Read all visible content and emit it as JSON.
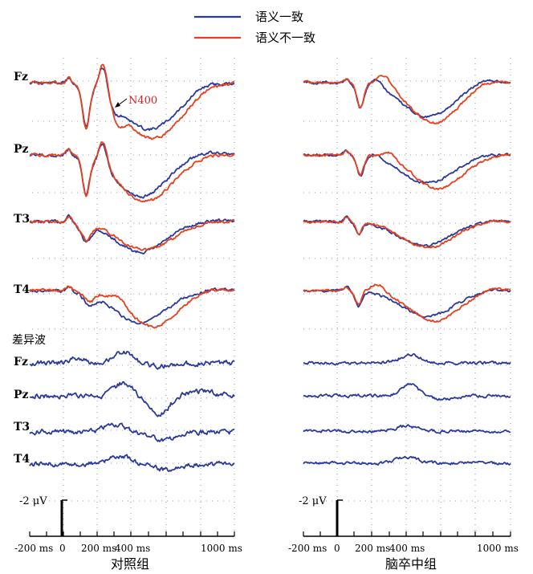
{
  "legend": [
    {
      "label": "语义一致",
      "color": "#2b3a9a"
    },
    {
      "label": "语义不一致",
      "color": "#e8401c"
    }
  ],
  "colors": {
    "consistent": "#2b3a9a",
    "inconsistent": "#e8401c",
    "grid": "#8aa0c4",
    "annotation": "#d02020"
  },
  "panels": [
    {
      "title": "对照组"
    },
    {
      "title": "脑卒中组"
    }
  ],
  "electrodes": [
    "Fz",
    "Pz",
    "T3",
    "T4"
  ],
  "difference_label": "差异波",
  "difference_electrodes": [
    "Fz",
    "Pz",
    "T3",
    "T4"
  ],
  "annotation": "N400",
  "scale_label": "-2 μV",
  "x_axis": {
    "ticks": [
      "-200 ms",
      "0",
      "200 ms",
      "400 ms",
      "1000 ms"
    ],
    "tick_values_ms": [
      -200,
      0,
      200,
      400,
      1000
    ],
    "range_ms": [
      -200,
      1000
    ]
  }
}
